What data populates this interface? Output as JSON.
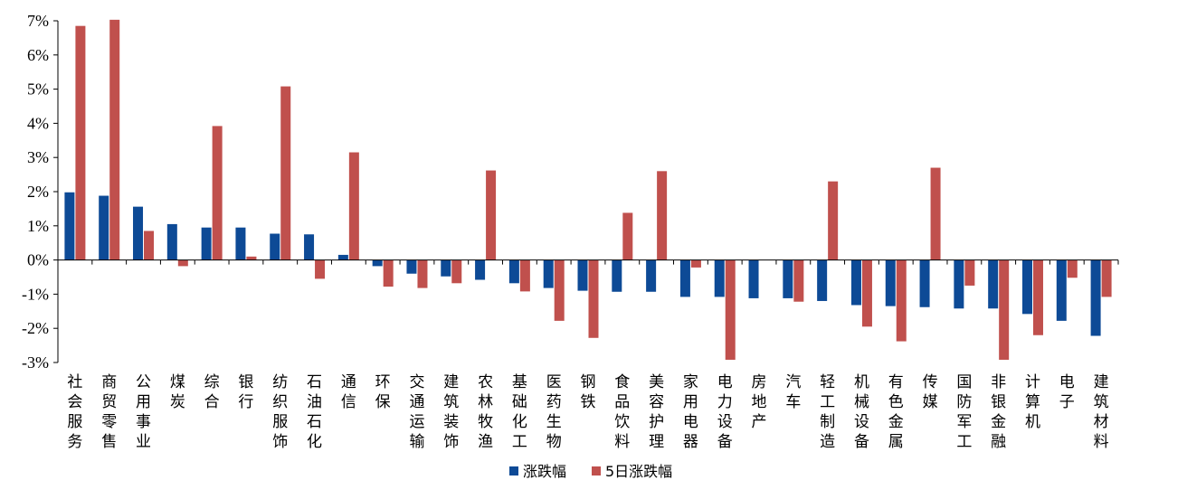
{
  "chart_data": {
    "type": "bar",
    "title": "",
    "xlabel": "",
    "ylabel": "",
    "ylim": [
      -3,
      7
    ],
    "yticks": [
      "7%",
      "6%",
      "5%",
      "4%",
      "3%",
      "2%",
      "1%",
      "0%",
      "-1%",
      "-2%",
      "-3%"
    ],
    "categories": [
      "社会服务",
      "商贸零售",
      "公用事业",
      "煤炭",
      "综合",
      "银行",
      "纺织服饰",
      "石油石化",
      "通信",
      "环保",
      "交通运输",
      "建筑装饰",
      "农林牧渔",
      "基础化工",
      "医药生物",
      "钢铁",
      "食品饮料",
      "美容护理",
      "家用电器",
      "电力设备",
      "房地产",
      "汽车",
      "轻工制造",
      "机械设备",
      "有色金属",
      "传媒",
      "国防军工",
      "非银金融",
      "计算机",
      "电子",
      "建筑材料"
    ],
    "series": [
      {
        "name": "涨跌幅",
        "color": "#0d4a96",
        "values": [
          1.98,
          1.88,
          1.56,
          1.05,
          0.95,
          0.95,
          0.77,
          0.75,
          0.15,
          -0.18,
          -0.4,
          -0.48,
          -0.58,
          -0.68,
          -0.82,
          -0.9,
          -0.93,
          -0.93,
          -1.08,
          -1.08,
          -1.12,
          -1.12,
          -1.2,
          -1.32,
          -1.35,
          -1.38,
          -1.42,
          -1.42,
          -1.58,
          -1.78,
          -2.22
        ]
      },
      {
        "name": "5日涨跌幅",
        "color": "#c0504d",
        "values": [
          6.85,
          7.03,
          0.85,
          -0.18,
          3.92,
          0.1,
          5.08,
          -0.55,
          3.15,
          -0.78,
          -0.82,
          -0.68,
          2.62,
          -0.92,
          -1.78,
          -2.28,
          1.38,
          2.6,
          -0.22,
          -2.92,
          0.0,
          -1.22,
          2.3,
          -1.95,
          -2.38,
          2.7,
          -0.75,
          -2.92,
          -2.2,
          -0.52,
          -1.08
        ]
      }
    ],
    "grid": false,
    "legend": "bottom-center"
  }
}
